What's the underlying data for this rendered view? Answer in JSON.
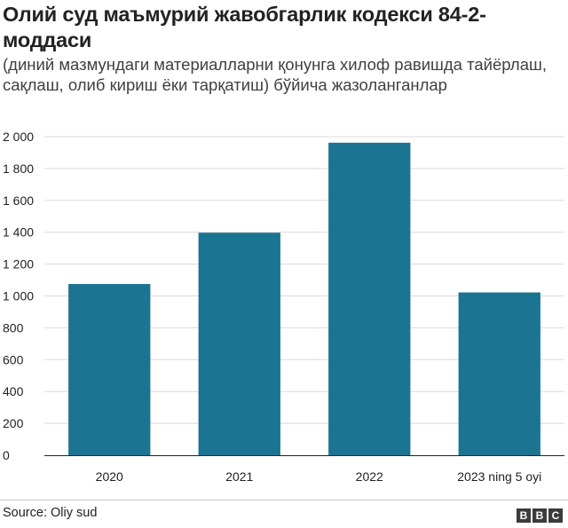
{
  "header": {
    "title": "Олий суд маъмурий жавобгарлик кодекси 84-2-моддаси",
    "subtitle": "(диний мазмундаги материалларни қонунга хилоф равишда тайёрлаш, сақлаш, олиб кириш ёки тарқатиш) бўйича жазоланганлар"
  },
  "chart_data": {
    "type": "bar",
    "title": "Олий суд маъмурий жавобгарлик кодекси 84-2-моддаси",
    "subtitle": "(диний мазмундаги материалларни қонунга хилоф равишда тайёрлаш, сақлаш, олиб кириш ёки тарқатиш) бўйича жазоланганлар",
    "categories": [
      "2020",
      "2021",
      "2022",
      "2023 ning 5 oyi"
    ],
    "values": [
      1075,
      1397,
      1962,
      1022
    ],
    "xlabel": "",
    "ylabel": "",
    "ylim": [
      0,
      2000
    ],
    "yticks": [
      0,
      200,
      400,
      600,
      800,
      1000,
      1200,
      1400,
      1600,
      1800,
      2000
    ],
    "ytick_labels": [
      "0",
      "200",
      "400",
      "600",
      "800",
      "1 000",
      "1 200",
      "1 400",
      "1 600",
      "1 800",
      "2 000"
    ],
    "grid": true,
    "bar_color": "#1b7491",
    "grid_color": "#d9d9d9"
  },
  "footer": {
    "source": "Source: Oliy sud",
    "logo_letters": [
      "B",
      "B",
      "C"
    ]
  }
}
